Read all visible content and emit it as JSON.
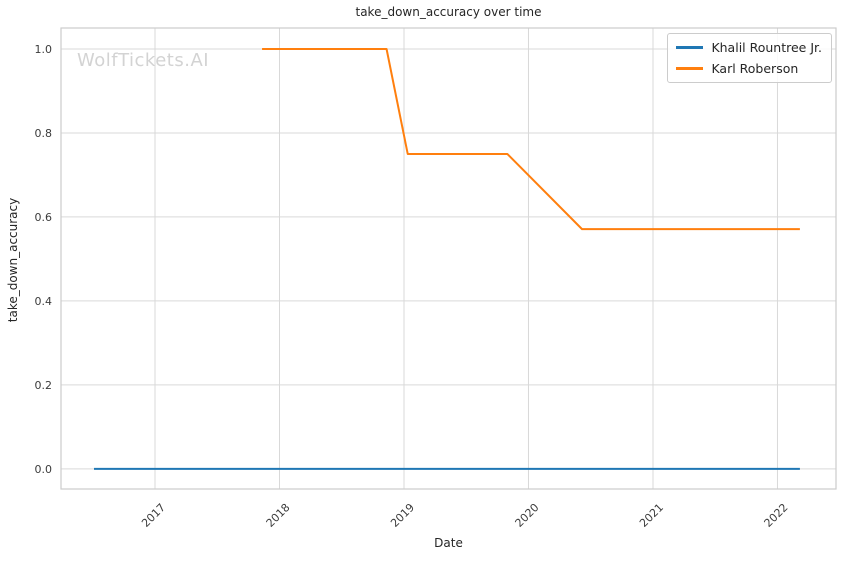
{
  "chart_data": {
    "type": "line",
    "title": "take_down_accuracy over time",
    "xlabel": "Date",
    "ylabel": "take_down_accuracy",
    "watermark": "WolfTickets.AI",
    "xlim": [
      2016.245,
      2022.47
    ],
    "ylim": [
      -0.048,
      1.05
    ],
    "xticks": [
      2017,
      2018,
      2019,
      2020,
      2021,
      2022
    ],
    "xtick_labels": [
      "2017",
      "2018",
      "2019",
      "2020",
      "2021",
      "2022"
    ],
    "yticks": [
      0.0,
      0.2,
      0.4,
      0.6,
      0.8,
      1.0
    ],
    "ytick_labels": [
      "0.0",
      "0.2",
      "0.4",
      "0.6",
      "0.8",
      "1.0"
    ],
    "grid": true,
    "x_tick_rotation_deg": 45,
    "legend_position": "upper right",
    "colors": {
      "grid": "#d9d9d9",
      "spine": "#cccccc",
      "tick_label": "#3b3b3b",
      "title": "#262626",
      "watermark": "#d3d3d3"
    },
    "series": [
      {
        "name": "Khalil Rountree Jr.",
        "color": "#1f77b4",
        "points": [
          [
            2016.51,
            0.0
          ],
          [
            2022.18,
            0.0
          ]
        ]
      },
      {
        "name": "Karl Roberson",
        "color": "#ff7f0e",
        "points": [
          [
            2017.86,
            1.0
          ],
          [
            2018.86,
            1.0
          ],
          [
            2019.03,
            0.75
          ],
          [
            2019.83,
            0.75
          ],
          [
            2020.43,
            0.571
          ],
          [
            2022.18,
            0.571
          ]
        ]
      }
    ]
  }
}
